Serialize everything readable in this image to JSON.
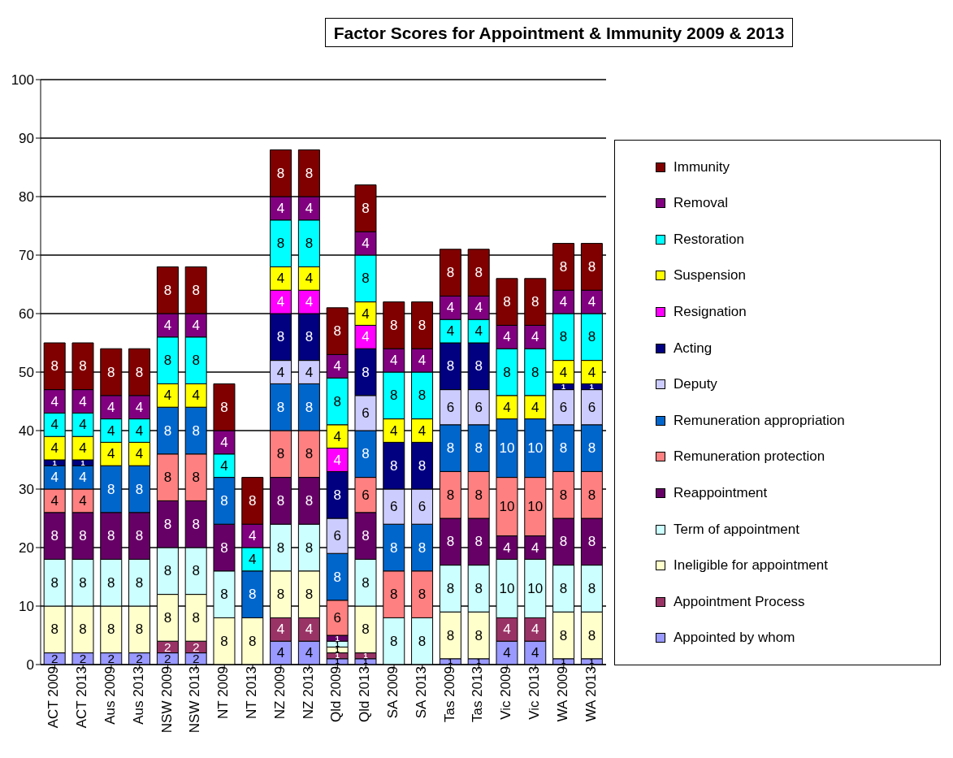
{
  "chart_data": {
    "type": "bar",
    "title": "Factor Scores for Appointment & Immunity 2009 & 2013",
    "stacked": true,
    "grid": "y",
    "legend": "right",
    "categories": [
      "ACT 2009",
      "ACT 2013",
      "Aus 2009",
      "Aus 2013",
      "NSW 2009",
      "NSW 2013",
      "NT 2009",
      "NT 2013",
      "NZ 2009",
      "NZ 2013",
      "Qld 2009",
      "Qld 2013",
      "SA 2009",
      "SA 2013",
      "Tas 2009",
      "Tas 2013",
      "Vic 2009",
      "Vic 2013",
      "WA 2009",
      "WA 2013"
    ],
    "ylim": [
      0,
      100
    ],
    "yticks": [
      0,
      10,
      20,
      30,
      40,
      50,
      60,
      70,
      80,
      90,
      100
    ],
    "series": [
      {
        "name": "Appointed by whom",
        "color": "#9999ff",
        "values": [
          2,
          2,
          2,
          2,
          2,
          2,
          0,
          0,
          4,
          4,
          1,
          1,
          0,
          0,
          1,
          1,
          4,
          4,
          1,
          1
        ],
        "value_labels": [
          "2",
          "2",
          "2",
          "2",
          "2",
          "2",
          null,
          null,
          "4",
          "4",
          "1",
          "1",
          null,
          null,
          "1",
          "1",
          "4",
          "4",
          "1",
          "1"
        ]
      },
      {
        "name": "Appointment Process",
        "color": "#993366",
        "values": [
          0,
          0,
          0,
          0,
          2,
          2,
          0,
          0,
          4,
          4,
          1,
          1,
          0,
          0,
          0,
          0,
          4,
          4,
          0,
          0
        ],
        "value_labels": [
          null,
          null,
          null,
          null,
          "2",
          "2",
          null,
          null,
          "4",
          "4",
          "1",
          "1",
          null,
          null,
          null,
          null,
          "4",
          "4",
          null,
          null
        ]
      },
      {
        "name": "Ineligible for appointment",
        "color": "#ffffcc",
        "values": [
          8,
          8,
          8,
          8,
          8,
          8,
          8,
          8,
          8,
          8,
          1,
          8,
          0,
          0,
          8,
          8,
          0,
          0,
          8,
          8
        ],
        "value_labels": [
          "8",
          "8",
          "8",
          "8",
          "8",
          "8",
          "8",
          "8",
          "8",
          "8",
          "1",
          "8",
          null,
          null,
          "8",
          "8",
          null,
          null,
          "8",
          "8"
        ]
      },
      {
        "name": "Term of appointment",
        "color": "#ccffff",
        "values": [
          8,
          8,
          8,
          8,
          8,
          8,
          8,
          0,
          8,
          8,
          1,
          8,
          8,
          8,
          8,
          8,
          10,
          10,
          8,
          8
        ],
        "value_labels": [
          "8",
          "8",
          "8",
          "8",
          "8",
          "8",
          "8",
          null,
          "8",
          "8",
          "1",
          "8",
          "8",
          "8",
          "8",
          "8",
          "10",
          "10",
          "8",
          "8"
        ]
      },
      {
        "name": "Reappointment",
        "color": "#660066",
        "values": [
          8,
          8,
          8,
          8,
          8,
          8,
          8,
          0,
          8,
          8,
          1,
          8,
          0,
          0,
          8,
          8,
          4,
          4,
          8,
          8
        ],
        "value_labels": [
          "8",
          "8",
          "8",
          "8",
          "8",
          "8",
          "8",
          null,
          "8",
          "8",
          "1",
          "8",
          null,
          null,
          "8",
          "8",
          "4",
          "4",
          "8",
          "8"
        ]
      },
      {
        "name": "Remuneration protection",
        "color": "#ff8080",
        "values": [
          4,
          4,
          0,
          0,
          8,
          8,
          0,
          0,
          8,
          8,
          6,
          6,
          8,
          8,
          8,
          8,
          10,
          10,
          8,
          8
        ],
        "value_labels": [
          "4",
          "4",
          null,
          null,
          "8",
          "8",
          null,
          null,
          "8",
          "8",
          "6",
          "6",
          "8",
          "8",
          "8",
          "8",
          "10",
          "10",
          "8",
          "8"
        ]
      },
      {
        "name": "Remuneration appropriation",
        "color": "#0066cc",
        "values": [
          4,
          4,
          8,
          8,
          8,
          8,
          8,
          8,
          8,
          8,
          8,
          8,
          8,
          8,
          8,
          8,
          10,
          10,
          8,
          8
        ],
        "value_labels": [
          "4",
          "4",
          "8",
          "8",
          "8",
          "8",
          "8",
          "8",
          "8",
          "8",
          "8",
          "8",
          "8",
          "8",
          "8",
          "8",
          "10",
          "10",
          "8",
          "8"
        ]
      },
      {
        "name": "Deputy",
        "color": "#ccccff",
        "values": [
          0,
          0,
          0,
          0,
          0,
          0,
          0,
          0,
          4,
          4,
          6,
          6,
          6,
          6,
          6,
          6,
          0,
          0,
          6,
          6
        ],
        "value_labels": [
          null,
          null,
          null,
          null,
          null,
          null,
          null,
          null,
          "4",
          "4",
          "6",
          "6",
          "6",
          "6",
          "6",
          "6",
          null,
          null,
          "6",
          "6"
        ]
      },
      {
        "name": "Acting",
        "color": "#000080",
        "values": [
          1,
          1,
          0,
          0,
          0,
          0,
          0,
          0,
          8,
          8,
          8,
          8,
          8,
          8,
          8,
          8,
          0,
          0,
          1,
          1
        ],
        "value_labels": [
          "1",
          "1",
          null,
          null,
          null,
          null,
          null,
          null,
          "8",
          "8",
          "8",
          "8",
          "8",
          "8",
          "8",
          "8",
          null,
          null,
          "1",
          "1"
        ]
      },
      {
        "name": "Resignation",
        "color": "#ff00ff",
        "values": [
          0,
          0,
          0,
          0,
          0,
          0,
          0,
          0,
          4,
          4,
          4,
          4,
          0,
          0,
          0,
          0,
          0,
          0,
          0,
          0
        ],
        "value_labels": [
          null,
          null,
          null,
          null,
          null,
          null,
          null,
          null,
          "4",
          "4",
          "4",
          "4",
          null,
          null,
          null,
          null,
          null,
          null,
          null,
          null
        ]
      },
      {
        "name": "Suspension",
        "color": "#ffff00",
        "values": [
          4,
          4,
          4,
          4,
          4,
          4,
          0,
          0,
          4,
          4,
          4,
          4,
          4,
          4,
          0,
          0,
          4,
          4,
          4,
          4
        ],
        "value_labels": [
          "4",
          "4",
          "4",
          "4",
          "4",
          "4",
          null,
          null,
          "4",
          "4",
          "4",
          "4",
          "4",
          "4",
          null,
          null,
          "4",
          "4",
          "4",
          "4"
        ]
      },
      {
        "name": "Restoration",
        "color": "#00ffff",
        "values": [
          4,
          4,
          4,
          4,
          8,
          8,
          4,
          4,
          8,
          8,
          8,
          8,
          8,
          8,
          4,
          4,
          8,
          8,
          8,
          8
        ],
        "value_labels": [
          "4",
          "4",
          "4",
          "4",
          "8",
          "8",
          "4",
          "4",
          "8",
          "8",
          "8",
          "8",
          "8",
          "8",
          "4",
          "4",
          "8",
          "8",
          "8",
          "8"
        ]
      },
      {
        "name": "Removal",
        "color": "#800080",
        "values": [
          4,
          4,
          4,
          4,
          4,
          4,
          4,
          4,
          4,
          4,
          4,
          4,
          4,
          4,
          4,
          4,
          4,
          4,
          4,
          4
        ],
        "value_labels": [
          "4",
          "4",
          "4",
          "4",
          "4",
          "4",
          "4",
          "4",
          "4",
          "4",
          "4",
          "4",
          "4",
          "4",
          "4",
          "4",
          "4",
          "4",
          "4",
          "4"
        ]
      },
      {
        "name": "Immunity",
        "color": "#800000",
        "values": [
          8,
          8,
          8,
          8,
          8,
          8,
          8,
          8,
          8,
          8,
          8,
          8,
          8,
          8,
          8,
          8,
          8,
          8,
          8,
          8
        ],
        "value_labels": [
          "8",
          "8",
          "8",
          "8",
          "8",
          "8",
          "8",
          "8",
          "8",
          "8",
          "8",
          "8",
          "8",
          "8",
          "8",
          "8",
          "8",
          "8",
          "8",
          "8"
        ]
      }
    ]
  }
}
